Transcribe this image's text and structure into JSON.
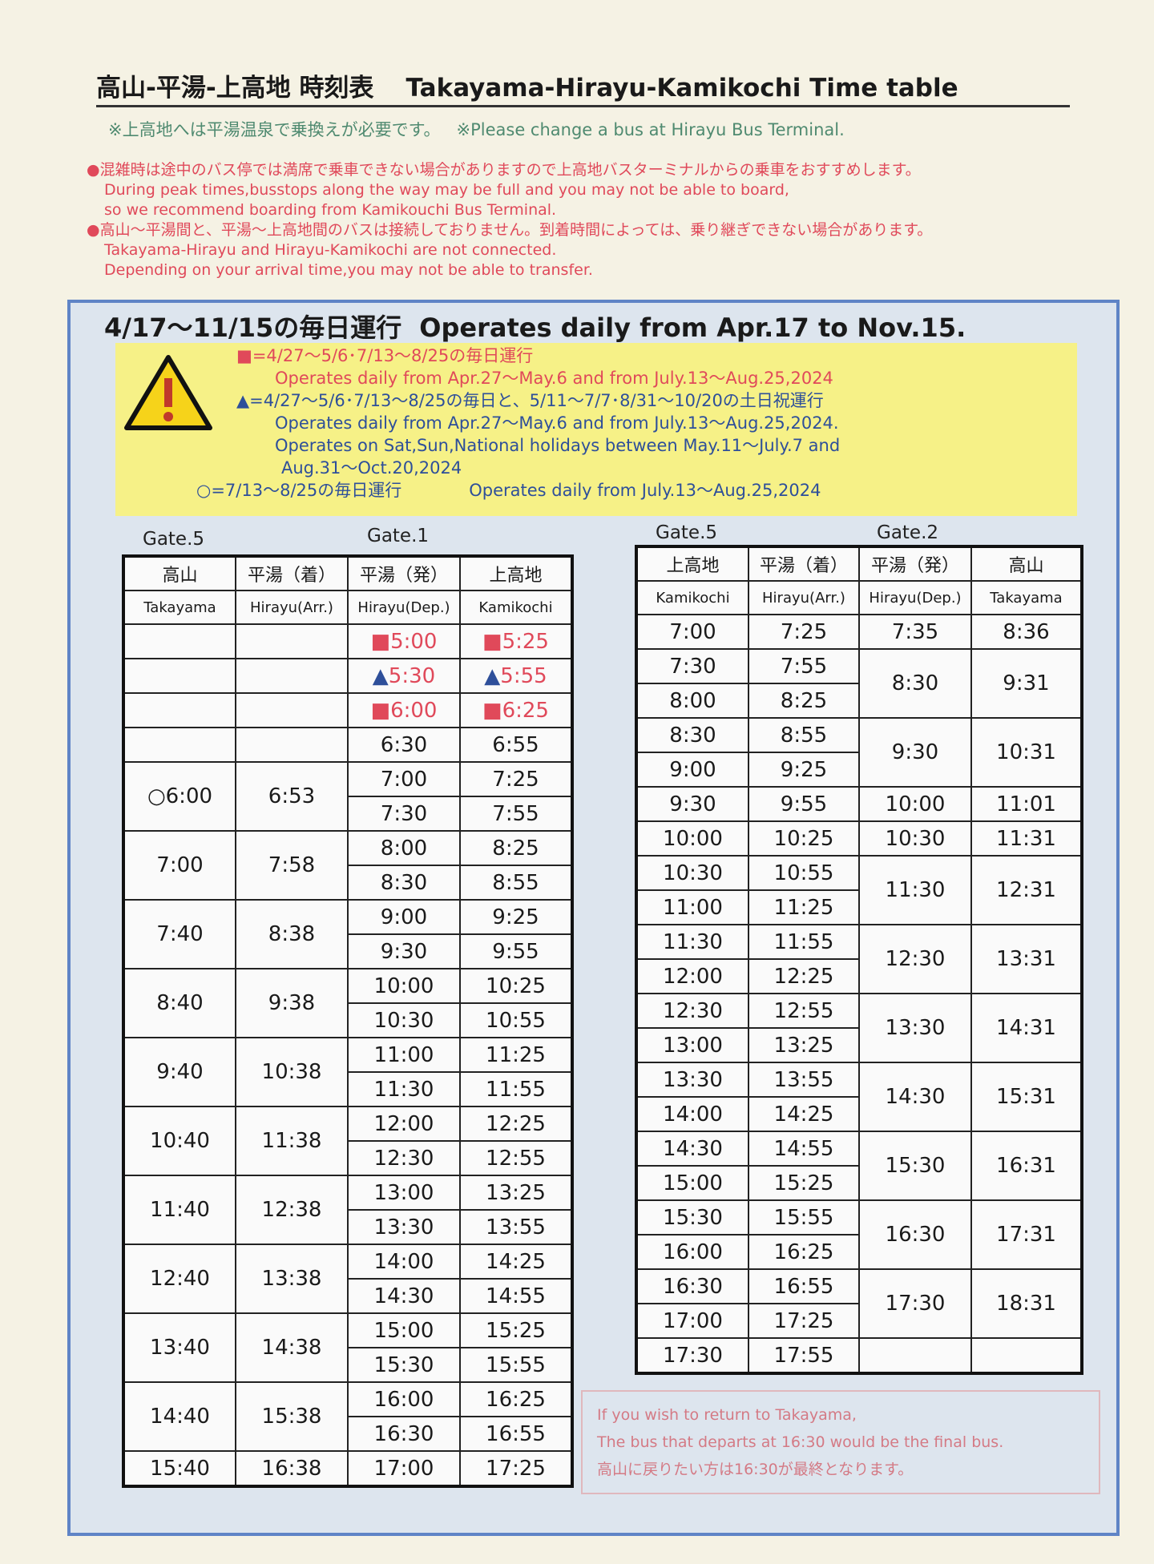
{
  "header": {
    "title_ja": "高山-平湯-上高地 時刻表",
    "title_en": "Takayama-Hirayu-Kamikochi Time table",
    "note_ja": "※上高地へは平湯温泉で乗換えが必要です。",
    "note_en": "※Please change a bus at Hirayu Bus Terminal."
  },
  "warnings": [
    [
      "●混雑時は途中のバス停では満席で乗車できない場合がありますので上高地バスターミナルからの乗車をおすすめします。",
      "During peak times,busstops along the way may be full and you may not be able to board,",
      "so we recommend boarding from Kamikouchi Bus Terminal."
    ],
    [
      "●高山～平湯間と、平湯～上高地間のバスは接続しておりません。到着時間によっては、乗り継ぎできない場合があります。",
      "Takayama-Hirayu and Hirayu-Kamikochi are not connected.",
      "Depending on your arrival time,you may not be able to transfer."
    ]
  ],
  "season": {
    "heading_ja": "4/17～11/15の毎日運行",
    "heading_en": "Operates daily from Apr.17 to Nov.15.",
    "legend": {
      "square_ja": "■=4/27～5/6･7/13～8/25の毎日運行",
      "square_en": "Operates daily from Apr.27～May.6 and from July.13～Aug.25,2024",
      "triangle_ja": "▲=4/27～5/6･7/13～8/25の毎日と、5/11～7/7･8/31～10/20の土日祝運行",
      "triangle_en": [
        "Operates daily from Apr.27～May.6 and from July.13～Aug.25,2024.",
        "Operates on Sat,Sun,National holidays between May.11～July.7 and",
        "Aug.31～Oct.20,2024"
      ],
      "circle_ja": "○=7/13～8/25の毎日運行",
      "circle_en": "Operates daily from July.13～Aug.25,2024"
    }
  },
  "left_table": {
    "gates": [
      "Gate.5",
      "Gate.1"
    ],
    "headers_ja": [
      "高山",
      "平湯（着）",
      "平湯（発）",
      "上高地"
    ],
    "headers_en": [
      "Takayama",
      "Hirayu(Arr.)",
      "Hirayu(Dep.)",
      "Kamikochi"
    ],
    "groups": [
      {
        "takayama": null,
        "hirayu_arr": null,
        "trips": [
          [
            "■5:00",
            "■5:25"
          ]
        ]
      },
      {
        "takayama": null,
        "hirayu_arr": null,
        "trips": [
          [
            "▲5:30",
            "▲5:55"
          ]
        ]
      },
      {
        "takayama": null,
        "hirayu_arr": null,
        "trips": [
          [
            "■6:00",
            "■6:25"
          ]
        ]
      },
      {
        "takayama": null,
        "hirayu_arr": null,
        "trips": [
          [
            "6:30",
            "6:55"
          ]
        ]
      },
      {
        "takayama": "○6:00",
        "hirayu_arr": "6:53",
        "trips": [
          [
            "7:00",
            "7:25"
          ],
          [
            "7:30",
            "7:55"
          ]
        ]
      },
      {
        "takayama": "7:00",
        "hirayu_arr": "7:58",
        "trips": [
          [
            "8:00",
            "8:25"
          ],
          [
            "8:30",
            "8:55"
          ]
        ]
      },
      {
        "takayama": "7:40",
        "hirayu_arr": "8:38",
        "trips": [
          [
            "9:00",
            "9:25"
          ],
          [
            "9:30",
            "9:55"
          ]
        ]
      },
      {
        "takayama": "8:40",
        "hirayu_arr": "9:38",
        "trips": [
          [
            "10:00",
            "10:25"
          ],
          [
            "10:30",
            "10:55"
          ]
        ]
      },
      {
        "takayama": "9:40",
        "hirayu_arr": "10:38",
        "trips": [
          [
            "11:00",
            "11:25"
          ],
          [
            "11:30",
            "11:55"
          ]
        ]
      },
      {
        "takayama": "10:40",
        "hirayu_arr": "11:38",
        "trips": [
          [
            "12:00",
            "12:25"
          ],
          [
            "12:30",
            "12:55"
          ]
        ]
      },
      {
        "takayama": "11:40",
        "hirayu_arr": "12:38",
        "trips": [
          [
            "13:00",
            "13:25"
          ],
          [
            "13:30",
            "13:55"
          ]
        ]
      },
      {
        "takayama": "12:40",
        "hirayu_arr": "13:38",
        "trips": [
          [
            "14:00",
            "14:25"
          ],
          [
            "14:30",
            "14:55"
          ]
        ]
      },
      {
        "takayama": "13:40",
        "hirayu_arr": "14:38",
        "trips": [
          [
            "15:00",
            "15:25"
          ],
          [
            "15:30",
            "15:55"
          ]
        ]
      },
      {
        "takayama": "14:40",
        "hirayu_arr": "15:38",
        "trips": [
          [
            "16:00",
            "16:25"
          ],
          [
            "16:30",
            "16:55"
          ]
        ]
      },
      {
        "takayama": "15:40",
        "hirayu_arr": "16:38",
        "trips": [
          [
            "17:00",
            "17:25"
          ]
        ]
      }
    ]
  },
  "right_table": {
    "gates": [
      "Gate.5",
      "Gate.2"
    ],
    "headers_ja": [
      "上高地",
      "平湯（着）",
      "平湯（発）",
      "高山"
    ],
    "headers_en": [
      "Kamikochi",
      "Hirayu(Arr.)",
      "Hirayu(Dep.)",
      "Takayama"
    ],
    "groups": [
      {
        "trips": [
          [
            "7:00",
            "7:25"
          ]
        ],
        "hirayu_dep": "7:35",
        "takayama": "8:36"
      },
      {
        "trips": [
          [
            "7:30",
            "7:55"
          ],
          [
            "8:00",
            "8:25"
          ]
        ],
        "hirayu_dep": "8:30",
        "takayama": "9:31"
      },
      {
        "trips": [
          [
            "8:30",
            "8:55"
          ],
          [
            "9:00",
            "9:25"
          ]
        ],
        "hirayu_dep": "9:30",
        "takayama": "10:31"
      },
      {
        "trips": [
          [
            "9:30",
            "9:55"
          ]
        ],
        "hirayu_dep": "10:00",
        "takayama": "11:01"
      },
      {
        "trips": [
          [
            "10:00",
            "10:25"
          ]
        ],
        "hirayu_dep": "10:30",
        "takayama": "11:31"
      },
      {
        "trips": [
          [
            "10:30",
            "10:55"
          ],
          [
            "11:00",
            "11:25"
          ]
        ],
        "hirayu_dep": "11:30",
        "takayama": "12:31"
      },
      {
        "trips": [
          [
            "11:30",
            "11:55"
          ],
          [
            "12:00",
            "12:25"
          ]
        ],
        "hirayu_dep": "12:30",
        "takayama": "13:31"
      },
      {
        "trips": [
          [
            "12:30",
            "12:55"
          ],
          [
            "13:00",
            "13:25"
          ]
        ],
        "hirayu_dep": "13:30",
        "takayama": "14:31"
      },
      {
        "trips": [
          [
            "13:30",
            "13:55"
          ],
          [
            "14:00",
            "14:25"
          ]
        ],
        "hirayu_dep": "14:30",
        "takayama": "15:31"
      },
      {
        "trips": [
          [
            "14:30",
            "14:55"
          ],
          [
            "15:00",
            "15:25"
          ]
        ],
        "hirayu_dep": "15:30",
        "takayama": "16:31"
      },
      {
        "trips": [
          [
            "15:30",
            "15:55"
          ],
          [
            "16:00",
            "16:25"
          ]
        ],
        "hirayu_dep": "16:30",
        "takayama": "17:31"
      },
      {
        "trips": [
          [
            "16:30",
            "16:55"
          ],
          [
            "17:00",
            "17:25"
          ]
        ],
        "hirayu_dep": "17:30",
        "takayama": "18:31"
      },
      {
        "trips": [
          [
            "17:30",
            "17:55"
          ]
        ],
        "hirayu_dep": null,
        "takayama": null
      }
    ]
  },
  "return_note": [
    "If you wish to return to Takayama,",
    "The bus that departs at 16:30 would be the final bus.",
    "高山に戻りたい方は16:30が最終となります。"
  ]
}
